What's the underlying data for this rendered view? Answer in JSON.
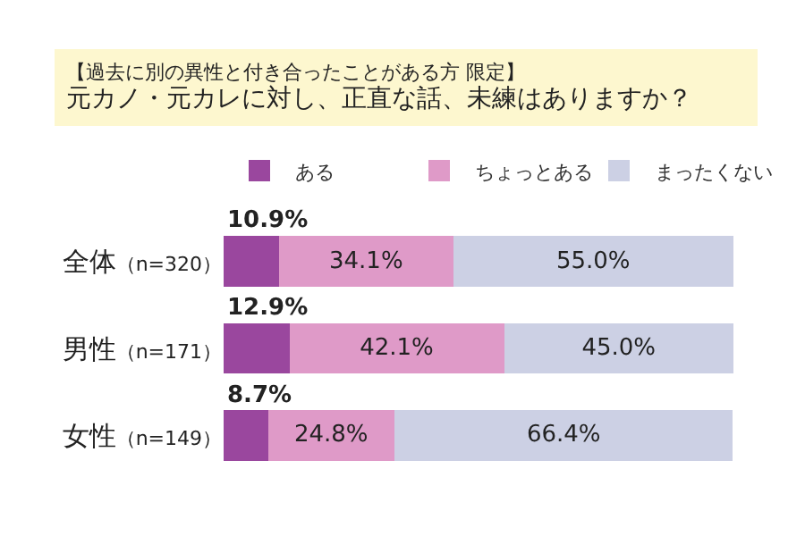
{
  "chart_data": {
    "type": "bar",
    "orientation": "horizontal",
    "stacked": true,
    "subtitle": "【過去に別の異性と付き合ったことがある方 限定】",
    "title": "元カノ・元カレに対し、正直な話、未練はありますか？",
    "categories": [
      "全体（n=320）",
      "男性（n=171）",
      "女性（n=149）"
    ],
    "series": [
      {
        "name": "ある",
        "color": "#9a479e",
        "values": [
          10.9,
          12.9,
          8.7
        ],
        "value_labels": [
          "10.9%",
          "12.9%",
          "8.7%"
        ]
      },
      {
        "name": "ちょっとある",
        "color": "#df9ac8",
        "values": [
          34.1,
          42.1,
          24.8
        ],
        "value_labels": [
          "34.1%",
          "42.1%",
          "24.8%"
        ]
      },
      {
        "name": "まったくない",
        "color": "#ccd0e4",
        "values": [
          55.0,
          45.0,
          66.4
        ],
        "value_labels": [
          "55.0%",
          "45.0%",
          "66.4%"
        ]
      }
    ],
    "legend": "top"
  }
}
